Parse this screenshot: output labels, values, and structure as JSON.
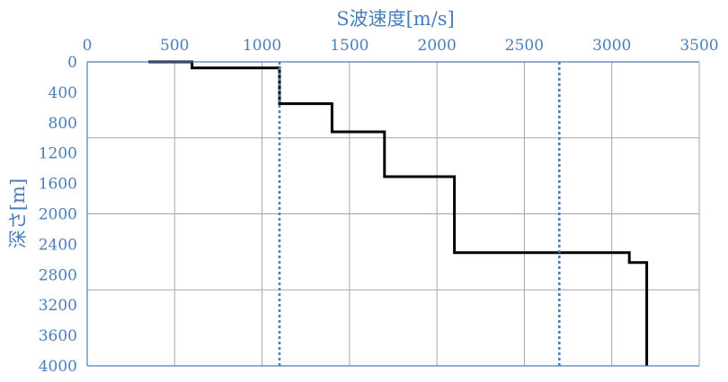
{
  "chart_data": {
    "type": "line",
    "xlabel": "S波速度[m/s]",
    "ylabel": "深さ[m]",
    "xlim": [
      0,
      3500
    ],
    "ylim": [
      0,
      4000
    ],
    "y_inverted": true,
    "x_axis_position": "top",
    "x_ticks": [
      "0",
      "500",
      "1000",
      "1500",
      "2000",
      "2500",
      "3000",
      "3500"
    ],
    "y_ticks": [
      "0",
      "400",
      "800",
      "1200",
      "1600",
      "2000",
      "2400",
      "2800",
      "3200",
      "3600",
      "4000"
    ],
    "grid": {
      "vertical_every": 500,
      "horizontal_every": 1000
    },
    "colors": {
      "axis_text": "#4a7ebb",
      "grid": "#a6a6a6",
      "profile": "#000000",
      "reference": "#4a7ebb"
    },
    "series": [
      {
        "style": "solid",
        "points": [
          [
            350,
            0
          ],
          [
            600,
            0
          ],
          [
            600,
            80
          ],
          [
            1100,
            80
          ],
          [
            1100,
            550
          ],
          [
            1400,
            550
          ],
          [
            1400,
            920
          ],
          [
            1700,
            920
          ],
          [
            1700,
            1510
          ],
          [
            2100,
            1510
          ],
          [
            2100,
            2510
          ],
          [
            3100,
            2510
          ],
          [
            3100,
            2640
          ],
          [
            3200,
            2640
          ],
          [
            3200,
            4000
          ]
        ]
      },
      {
        "style": "dotted",
        "points": [
          [
            1100,
            0
          ],
          [
            1100,
            4000
          ]
        ]
      },
      {
        "style": "dotted",
        "points": [
          [
            2700,
            0
          ],
          [
            2700,
            4000
          ]
        ]
      }
    ]
  }
}
